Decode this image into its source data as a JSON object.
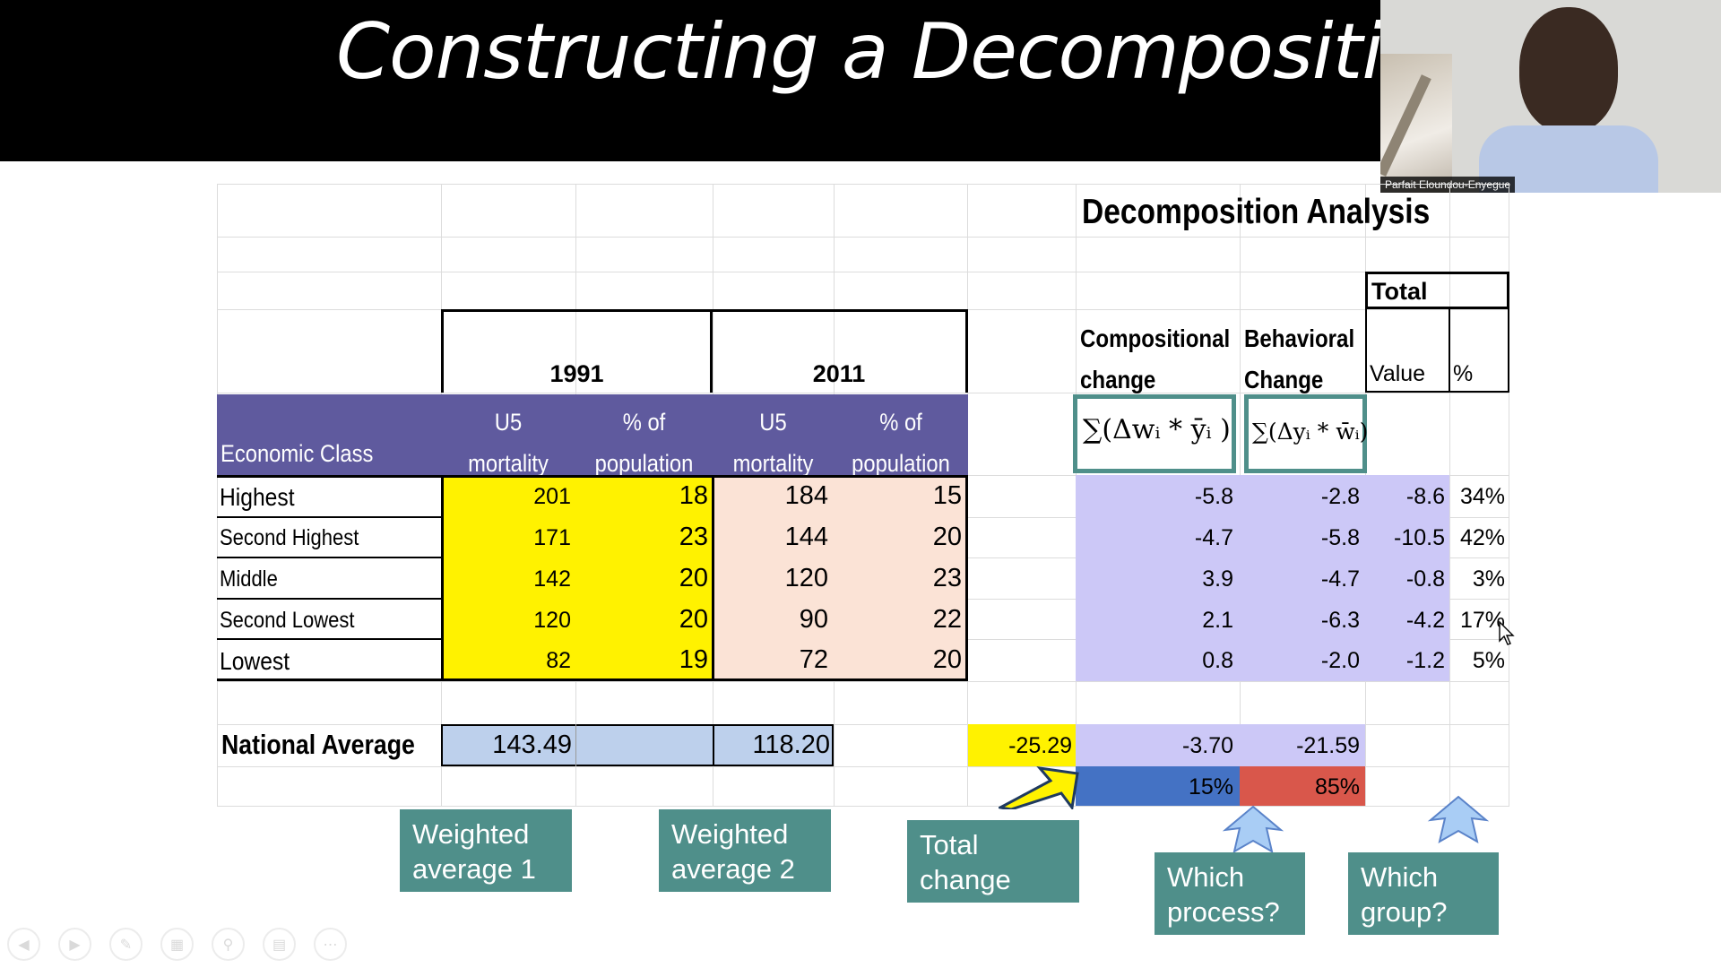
{
  "slide": {
    "title": "Constructing a Decomposition Table",
    "presenter_name": "Parfait Eloundou-Enyegue"
  },
  "table": {
    "analysis_title": "Decomposition Analysis",
    "years": [
      "1991",
      "2011"
    ],
    "col_headers": {
      "economic_class": "Economic Class",
      "u5_line1": "U5",
      "u5_line2": "mortality",
      "pop_line1": "% of",
      "pop_line2": "population"
    },
    "comp_header": [
      "Compositional",
      "change"
    ],
    "behav_header": [
      "Behavioral",
      "Change"
    ],
    "total_header": "Total",
    "value_header": "Value",
    "pct_header": "%",
    "comp_formula": "∑(Δwᵢ * ȳᵢ )",
    "behav_formula": "∑(Δyᵢ * w̄ᵢ)",
    "rows": [
      {
        "cls": "Highest",
        "u5_1991": "201",
        "pop_1991": "18",
        "u5_2011": "184",
        "pop_2011": "15",
        "comp": "-5.8",
        "behav": "-2.8",
        "total": "-8.6",
        "pct": "34%"
      },
      {
        "cls": "Second Highest",
        "u5_1991": "171",
        "pop_1991": "23",
        "u5_2011": "144",
        "pop_2011": "20",
        "comp": "-4.7",
        "behav": "-5.8",
        "total": "-10.5",
        "pct": "42%"
      },
      {
        "cls": "Middle",
        "u5_1991": "142",
        "pop_1991": "20",
        "u5_2011": "120",
        "pop_2011": "23",
        "comp": "3.9",
        "behav": "-4.7",
        "total": "-0.8",
        "pct": "3%"
      },
      {
        "cls": "Second Lowest",
        "u5_1991": "120",
        "pop_1991": "20",
        "u5_2011": "90",
        "pop_2011": "22",
        "comp": "2.1",
        "behav": "-6.3",
        "total": "-4.2",
        "pct": "17%"
      },
      {
        "cls": "Lowest",
        "u5_1991": "82",
        "pop_1991": "19",
        "u5_2011": "72",
        "pop_2011": "20",
        "comp": "0.8",
        "behav": "-2.0",
        "total": "-1.2",
        "pct": "5%"
      }
    ],
    "national": {
      "label": "National Average",
      "avg_1991": "143.49",
      "avg_2011": "118.20",
      "total_change": "-25.29",
      "comp_total": "-3.70",
      "behav_total": "-21.59",
      "comp_pct": "15%",
      "behav_pct": "85%"
    }
  },
  "callouts": {
    "weighted1": [
      "Weighted",
      "average 1"
    ],
    "weighted2": [
      "Weighted",
      "average 2"
    ],
    "total_change": [
      "Total",
      "change"
    ],
    "which_process": [
      "Which",
      "process?"
    ],
    "which_group": [
      "Which",
      "group?"
    ]
  },
  "colors": {
    "header_purple": "#5f5a9e",
    "yellow": "#fff200",
    "peach": "#fbe3d6",
    "lavender": "#ccc8f7",
    "avg_blue": "#bdd0ec",
    "comp_pct_blue": "#4472c4",
    "behav_pct_red": "#d9574b",
    "callout_teal": "#4f8f8a",
    "arrow_blue": "#a9cdf5"
  },
  "toolbar_icons": [
    "previous-icon",
    "next-icon",
    "pen-icon",
    "slides-grid-icon",
    "zoom-icon",
    "subtitles-icon",
    "more-icon"
  ]
}
